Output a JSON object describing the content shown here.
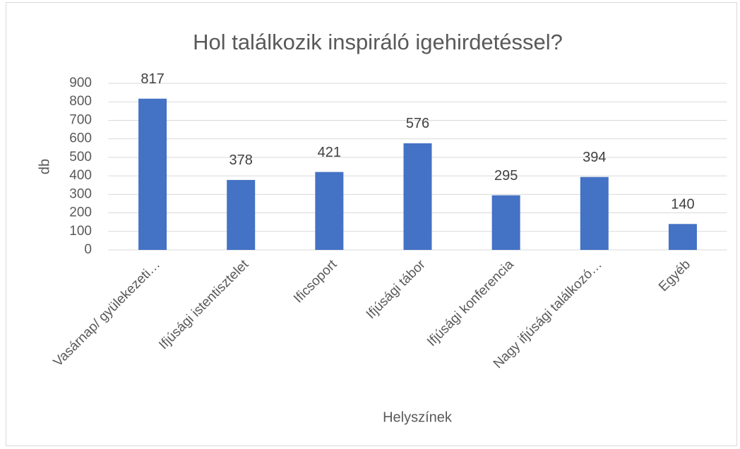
{
  "chart_data": {
    "type": "bar",
    "title": "Hol találkozik inspiráló igehirdetéssel?",
    "x_label": "Helyszínek",
    "y_label": "db",
    "categories": [
      "Vasárnap/ gyülekezeti…",
      "Ifjúsági istentisztelet",
      "Ificsoport",
      "Ifjúsági tábor",
      "Ifjúsági konferencia",
      "Nagy ifjúsági találkozó…",
      "Egyéb"
    ],
    "values": [
      817,
      378,
      421,
      576,
      295,
      394,
      140
    ],
    "color": "#4472c4",
    "ylim": [
      0,
      900
    ],
    "yticks": [
      0,
      100,
      200,
      300,
      400,
      500,
      600,
      700,
      800,
      900
    ],
    "grid": true
  }
}
